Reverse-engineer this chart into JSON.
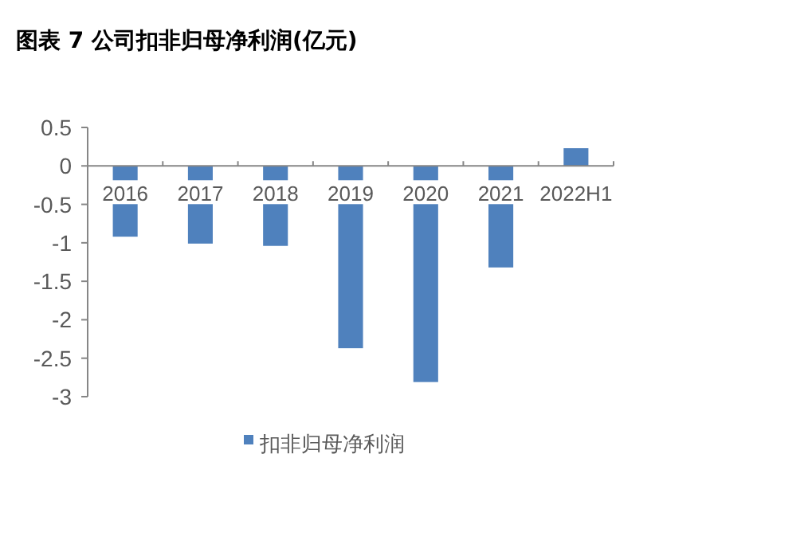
{
  "chart_data": {
    "type": "bar",
    "title": "图表 7 公司扣非归母净利润(亿元)",
    "categories": [
      "2016",
      "2017",
      "2018",
      "2019",
      "2020",
      "2021",
      "2022H1"
    ],
    "series": [
      {
        "name": "扣非归母净利润",
        "color": "#4f81bd",
        "values": [
          -0.92,
          -1.01,
          -1.04,
          -2.37,
          -2.81,
          -1.32,
          0.23
        ]
      }
    ],
    "ylim": [
      -3,
      0.5
    ],
    "yticks": [
      -3,
      -2.5,
      -2,
      -1.5,
      -1,
      -0.5,
      0,
      0.5
    ],
    "legend": "bottom",
    "grid": false
  }
}
